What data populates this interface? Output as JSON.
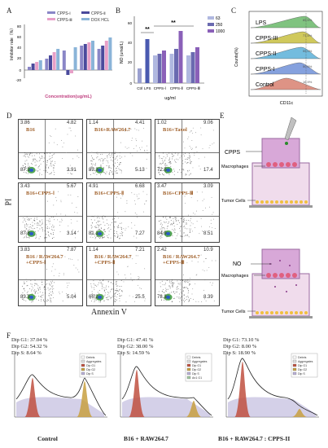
{
  "panels": {
    "A": "A",
    "B": "B",
    "C": "C",
    "D": "D",
    "E": "E",
    "F": "F"
  },
  "panelA": {
    "legend": [
      "CPPS-Ⅰ",
      "CPPS-Ⅱ",
      "CPPS-Ⅲ",
      "DOX HCL"
    ],
    "ylabel": "Inhibitor rate（%）",
    "xlabel": "Concentration(ug/mL)",
    "yticks": [
      "80",
      "60",
      "40",
      "20",
      "0",
      "-20"
    ],
    "colors": [
      "#8a86c7",
      "#4a4a9c",
      "#e8a0c8",
      "#8ab4d8"
    ]
  },
  "panelB": {
    "ylabel": "NO (umol/L)",
    "xlabel": "ug/ml",
    "sig1": "**",
    "sig2": "**",
    "yticks": [
      "60",
      "40",
      "20",
      "0"
    ],
    "legend": [
      "63",
      "250",
      "1000"
    ],
    "categories": [
      "Ctrl",
      "LPS",
      "CPPS-Ⅰ",
      "CPPS-Ⅱ",
      "CPPS-Ⅲ"
    ]
  },
  "panelC": {
    "rows": [
      {
        "label": "LPS",
        "pct": "85.5%",
        "color": "#6ab86a"
      },
      {
        "label": "CPPS-III",
        "pct": "71.5%",
        "color": "#c8c040"
      },
      {
        "label": "CPPS-II",
        "pct": "55.0%",
        "color": "#5ab0d8"
      },
      {
        "label": "CPPS-I",
        "pct": "50.6%",
        "color": "#7090d8"
      },
      {
        "label": "Control",
        "pct": "16.9%",
        "color": "#d88070"
      }
    ],
    "ylabel": "Counts(%)",
    "xlabel": "CD11c"
  },
  "panelD": {
    "ylabel": "PI",
    "xlabel": "Annexin V",
    "cells": [
      {
        "name": "B16",
        "ul": "3.86",
        "ur": "4.82",
        "ll": "87.3",
        "lr": "3.91"
      },
      {
        "name": "B16+RAW264.7",
        "ul": "1.14",
        "ur": "4.41",
        "ll": "89.3",
        "lr": "5.13"
      },
      {
        "name": "B16+Taxol",
        "ul": "1.02",
        "ur": "9.06",
        "ll": "72.5",
        "lr": "17.4"
      },
      {
        "name": "B16+CPPS-Ⅰ",
        "ul": "3.43",
        "ur": "5.67",
        "ll": "87.8",
        "lr": "3.14"
      },
      {
        "name": "B16+CPPS-Ⅱ",
        "ul": "4.91",
        "ur": "6.68",
        "ll": "81.1",
        "lr": "7.27"
      },
      {
        "name": "B16+CPPS-Ⅲ",
        "ul": "3.47",
        "ur": "3.09",
        "ll": "84.9",
        "lr": "8.51"
      },
      {
        "name": "B16 / RAW264.7 +CPPS-Ⅰ",
        "ul": "3.83",
        "ur": "7.87",
        "ll": "83.3",
        "lr": "5.04"
      },
      {
        "name": "B16 / RAW264.7 +CPPS-Ⅱ",
        "ul": "1.14",
        "ur": "7.21",
        "ll": "66.2",
        "lr": "25.5"
      },
      {
        "name": "B16 / RAW264.7 +CPPS-Ⅲ",
        "ul": "2.42",
        "ur": "10.9",
        "ll": "78.3",
        "lr": "8.39"
      }
    ]
  },
  "panelE": {
    "top": {
      "cpps": "CPPS",
      "macro": "Macrophages",
      "tumor": "Tumor Cells"
    },
    "bottom": {
      "no": "NO",
      "macro": "Macrophages",
      "tumor": "Tumor Cells"
    }
  },
  "panelF": {
    "plots": [
      {
        "g1": "Dip G1: 37.04 %",
        "g2": "Dip G2: 54.32 %",
        "s": "Dip S: 8.64 %",
        "caption": "Control"
      },
      {
        "g1": "Dip G1: 47.41 %",
        "g2": "Dip G2: 38.00 %",
        "s": "Dip S: 14.59 %",
        "caption": "B16 + RAW264.7"
      },
      {
        "g1": "Dip G1: 73.10 %",
        "g2": "Dip G2: 8.00 %",
        "s": "Dip S: 18.90 %",
        "caption": "B16 + RAW264.7 : CPPS-II"
      }
    ],
    "legend": [
      "Debris",
      "Aggregates",
      "Dip G1",
      "Dip G2",
      "Dip S"
    ],
    "legend_b": [
      "Debris",
      "Aggregates",
      "Dip G1",
      "Dip G2",
      "Dip S",
      "An1 G1"
    ]
  }
}
